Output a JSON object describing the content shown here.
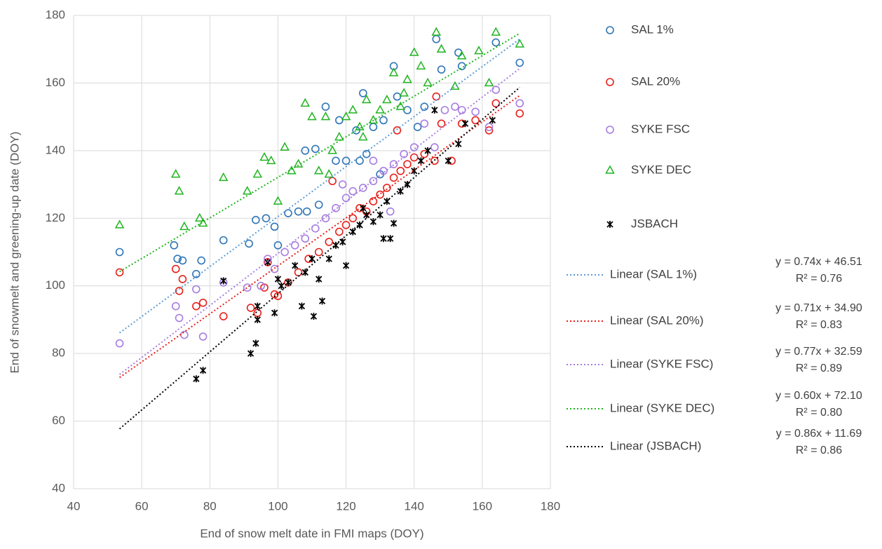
{
  "chart_data": {
    "type": "scatter",
    "xlabel": "End of snow melt date in FMI maps (DOY)",
    "ylabel": "End of snowmelt and greening-up date (DOY)",
    "xlim": [
      40,
      180
    ],
    "ylim": [
      40,
      180
    ],
    "xticks": [
      40,
      60,
      80,
      100,
      120,
      140,
      160,
      180
    ],
    "yticks": [
      40,
      60,
      80,
      100,
      120,
      140,
      160,
      180
    ],
    "grid": true,
    "series": [
      {
        "name": "SAL 1%",
        "color": "#2e75b6",
        "marker": "circle",
        "x": [
          53.5,
          69.5,
          70.5,
          72,
          76,
          77.5,
          84,
          91.5,
          93.5,
          96.5,
          99,
          100,
          103,
          106,
          108,
          111,
          114,
          117,
          118,
          120,
          123,
          125,
          126,
          128,
          131,
          134,
          135,
          138,
          141,
          143,
          146.5,
          148,
          153,
          154,
          164,
          171,
          108.5,
          112,
          130,
          124
        ],
        "values": [
          110,
          112,
          108,
          107.5,
          103.5,
          107.5,
          113.5,
          112.5,
          119.5,
          120,
          117.5,
          112,
          121.5,
          122,
          140,
          140.5,
          153,
          137,
          149,
          137,
          146,
          157,
          139,
          147,
          149,
          165,
          156,
          152,
          147,
          153,
          173,
          164,
          169,
          165,
          172,
          166,
          122,
          124,
          133,
          137
        ]
      },
      {
        "name": "SAL 20%",
        "color": "#e8201a",
        "marker": "circle",
        "x": [
          53.5,
          70,
          71,
          72,
          76,
          78,
          84,
          92,
          94,
          96,
          97,
          99,
          100,
          103,
          106,
          109,
          112,
          115,
          118,
          120,
          122,
          124,
          126,
          128,
          130,
          132,
          134,
          136,
          138,
          140,
          143,
          146,
          146.5,
          148,
          151,
          154,
          158,
          162,
          164,
          171,
          116,
          135
        ],
        "values": [
          104,
          105,
          98.5,
          102,
          94,
          95,
          91,
          93.5,
          92,
          99.5,
          107,
          97.5,
          97,
          101,
          104,
          108,
          110,
          113,
          116,
          118,
          120,
          123,
          122,
          125,
          127,
          129,
          132,
          134,
          136,
          138,
          139,
          137,
          156,
          148,
          137,
          148,
          149,
          146,
          154,
          151,
          131,
          146
        ]
      },
      {
        "name": "SYKE FSC",
        "color": "#a77de0",
        "marker": "circle",
        "x": [
          53.5,
          70,
          71,
          72.5,
          76,
          78,
          84,
          91,
          95,
          97,
          99,
          102,
          105,
          108,
          111,
          114,
          117,
          120,
          122,
          125,
          128,
          131,
          134,
          137,
          140,
          143,
          146,
          149,
          152,
          154,
          158,
          162,
          164,
          171,
          133,
          128,
          119
        ],
        "values": [
          83,
          94,
          90.5,
          85.5,
          99,
          85,
          101,
          99.5,
          100,
          108,
          105,
          110,
          112,
          114,
          117,
          120,
          123,
          126,
          128,
          129,
          131,
          134,
          136,
          139,
          141,
          148,
          141,
          152,
          153,
          152,
          151.5,
          147,
          158,
          154,
          122,
          137,
          130
        ]
      },
      {
        "name": "SYKE DEC",
        "color": "#1fb41f",
        "marker": "triangle",
        "x": [
          53.5,
          70,
          71,
          72.5,
          77,
          78,
          84,
          91,
          94,
          96,
          98,
          100,
          102,
          104,
          106,
          108,
          110,
          112,
          114,
          116,
          118,
          120,
          122,
          124,
          126,
          128,
          130,
          132,
          134,
          136,
          138,
          140,
          142,
          144,
          146.5,
          148,
          152,
          154,
          159,
          162,
          164,
          171,
          115,
          125,
          137
        ],
        "values": [
          118,
          133,
          128,
          117.5,
          120,
          118.5,
          132,
          128,
          133,
          138,
          137,
          125,
          141,
          134,
          136,
          154,
          150,
          134,
          150,
          140,
          144,
          150,
          152,
          147,
          155,
          149,
          152,
          155,
          163,
          153,
          161,
          169,
          165,
          160,
          175,
          170,
          159,
          168,
          169.5,
          160,
          175,
          171.5,
          133,
          144,
          157
        ]
      },
      {
        "name": "JSBACH",
        "color": "#000000",
        "marker": "asterisk",
        "x": [
          76,
          78,
          84,
          92,
          93.5,
          94,
          94,
          97,
          99,
          100,
          101,
          103,
          105,
          107,
          108,
          110,
          110.5,
          112,
          113,
          115,
          117,
          119,
          120,
          122,
          124,
          126,
          128,
          130,
          132,
          133,
          134,
          136,
          138,
          140,
          142,
          144,
          146,
          150,
          153,
          155,
          163,
          125,
          131
        ],
        "values": [
          72.5,
          75,
          101.5,
          80,
          83,
          94,
          90,
          107,
          92,
          102,
          100,
          101,
          106,
          94,
          104,
          108,
          91,
          102,
          95.5,
          108,
          112,
          113,
          106,
          116,
          118,
          121,
          119,
          121,
          125,
          114,
          118.5,
          128,
          130,
          134,
          137,
          140,
          152,
          137,
          142,
          148,
          149,
          123,
          114
        ]
      }
    ],
    "trendlines": [
      {
        "name": "Linear (SAL 1%)",
        "color": "#5b9bd5",
        "x": [
          53.5,
          171
        ],
        "values": [
          86.1,
          173.0
        ],
        "equation": "y = 0.74x + 46.51",
        "r2": "R² = 0.76"
      },
      {
        "name": "Linear (SAL 20%)",
        "color": "#e8201a",
        "x": [
          53.5,
          171
        ],
        "values": [
          72.9,
          156.3
        ],
        "equation": "y = 0.71x + 34.90",
        "r2": "R² = 0.83"
      },
      {
        "name": "Linear (SYKE FSC)",
        "color": "#a77de0",
        "x": [
          53.5,
          171
        ],
        "values": [
          73.8,
          164.3
        ],
        "equation": "y = 0.77x + 32.59",
        "r2": "R² = 0.89"
      },
      {
        "name": "Linear (SYKE DEC)",
        "color": "#1fb41f",
        "x": [
          53.5,
          171
        ],
        "values": [
          104.2,
          174.7
        ],
        "equation": "y = 0.60x + 72.10",
        "r2": "R² = 0.80"
      },
      {
        "name": "Linear (JSBACH)",
        "color": "#000000",
        "x": [
          53.5,
          171
        ],
        "values": [
          57.7,
          158.7
        ],
        "equation": "y = 0.86x + 11.69",
        "r2": "R² = 0.86"
      }
    ]
  }
}
